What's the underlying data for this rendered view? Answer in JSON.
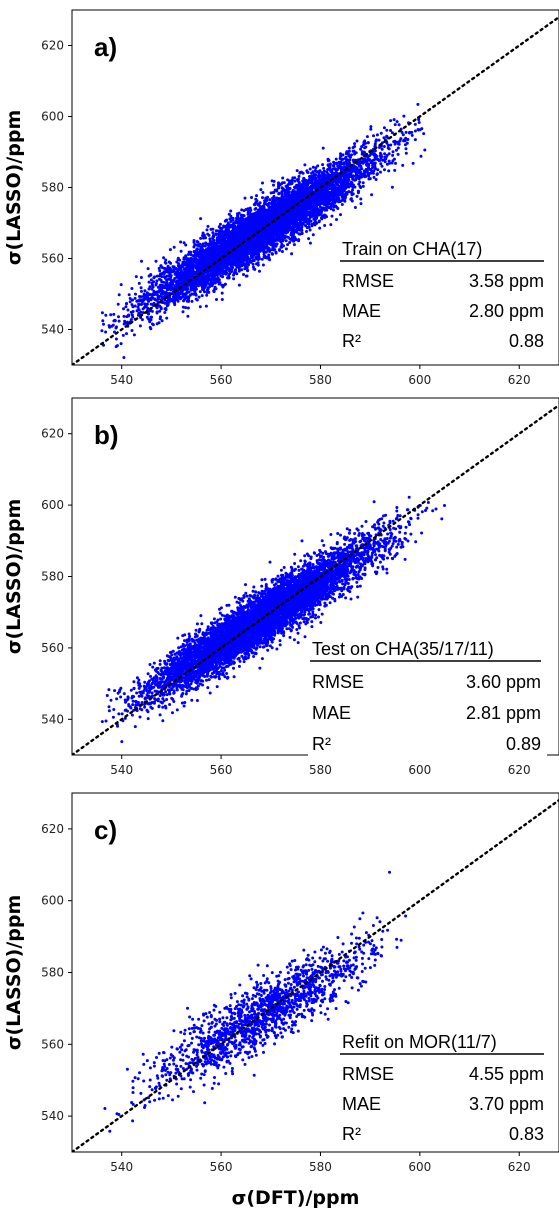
{
  "chart_data": [
    {
      "type": "scatter",
      "panel_label": "a)",
      "ylabel": "σ(LASSO)/ppm",
      "xlabel": "",
      "xlim": [
        530,
        628
      ],
      "ylim": [
        530,
        630
      ],
      "xticks": [
        540,
        560,
        580,
        600,
        620
      ],
      "yticks": [
        540,
        560,
        580,
        600,
        620
      ],
      "xtick_labels": [
        "540",
        "560",
        "580",
        "600",
        "620"
      ],
      "ytick_labels": [
        "540",
        "560",
        "580",
        "600",
        "620"
      ],
      "point_color": "#0000ff",
      "reference_line": "y = x (dotted)",
      "point_count_approx": 7000,
      "data_trend": {
        "slope_approx": 0.88,
        "spread_ppm": 3.6,
        "x_range": [
          536,
          602
        ]
      },
      "stats": {
        "title": "Train on CHA(17)",
        "rows": [
          {
            "label": "RMSE",
            "value": "3.58 ppm"
          },
          {
            "label": "MAE",
            "value": "2.80 ppm"
          },
          {
            "label": "R²",
            "value": "0.88"
          }
        ]
      }
    },
    {
      "type": "scatter",
      "panel_label": "b)",
      "ylabel": "σ(LASSO)/ppm",
      "xlabel": "",
      "xlim": [
        530,
        628
      ],
      "ylim": [
        530,
        630
      ],
      "xticks": [
        540,
        560,
        580,
        600,
        620
      ],
      "yticks": [
        540,
        560,
        580,
        600,
        620
      ],
      "xtick_labels": [
        "540",
        "560",
        "580",
        "600",
        "620"
      ],
      "ytick_labels": [
        "540",
        "560",
        "580",
        "600",
        "620"
      ],
      "point_color": "#0000ff",
      "reference_line": "y = x (dotted)",
      "point_count_approx": 7000,
      "data_trend": {
        "slope_approx": 0.89,
        "spread_ppm": 3.6,
        "x_range": [
          536,
          605
        ]
      },
      "stats": {
        "title": "Test on CHA(35/17/11)",
        "rows": [
          {
            "label": "RMSE",
            "value": "3.60 ppm"
          },
          {
            "label": "MAE",
            "value": "2.81 ppm"
          },
          {
            "label": "R²",
            "value": "0.89"
          }
        ]
      }
    },
    {
      "type": "scatter",
      "panel_label": "c)",
      "ylabel": "σ(LASSO)/ppm",
      "xlabel": "σ(DFT)/ppm",
      "xlim": [
        530,
        628
      ],
      "ylim": [
        530,
        630
      ],
      "xticks": [
        540,
        560,
        580,
        600,
        620
      ],
      "yticks": [
        540,
        560,
        580,
        600,
        620
      ],
      "xtick_labels": [
        "540",
        "560",
        "580",
        "600",
        "620"
      ],
      "ytick_labels": [
        "540",
        "560",
        "580",
        "600",
        "620"
      ],
      "point_color": "#0000ff",
      "reference_line": "y = x (dotted)",
      "point_count_approx": 1500,
      "data_trend": {
        "slope_approx": 0.83,
        "spread_ppm": 4.5,
        "x_range": [
          536,
          598
        ]
      },
      "stats": {
        "title": "Refit on MOR(11/7)",
        "rows": [
          {
            "label": "RMSE",
            "value": "4.55 ppm"
          },
          {
            "label": "MAE",
            "value": "3.70 ppm"
          },
          {
            "label": "R²",
            "value": "0.83"
          }
        ]
      }
    }
  ]
}
